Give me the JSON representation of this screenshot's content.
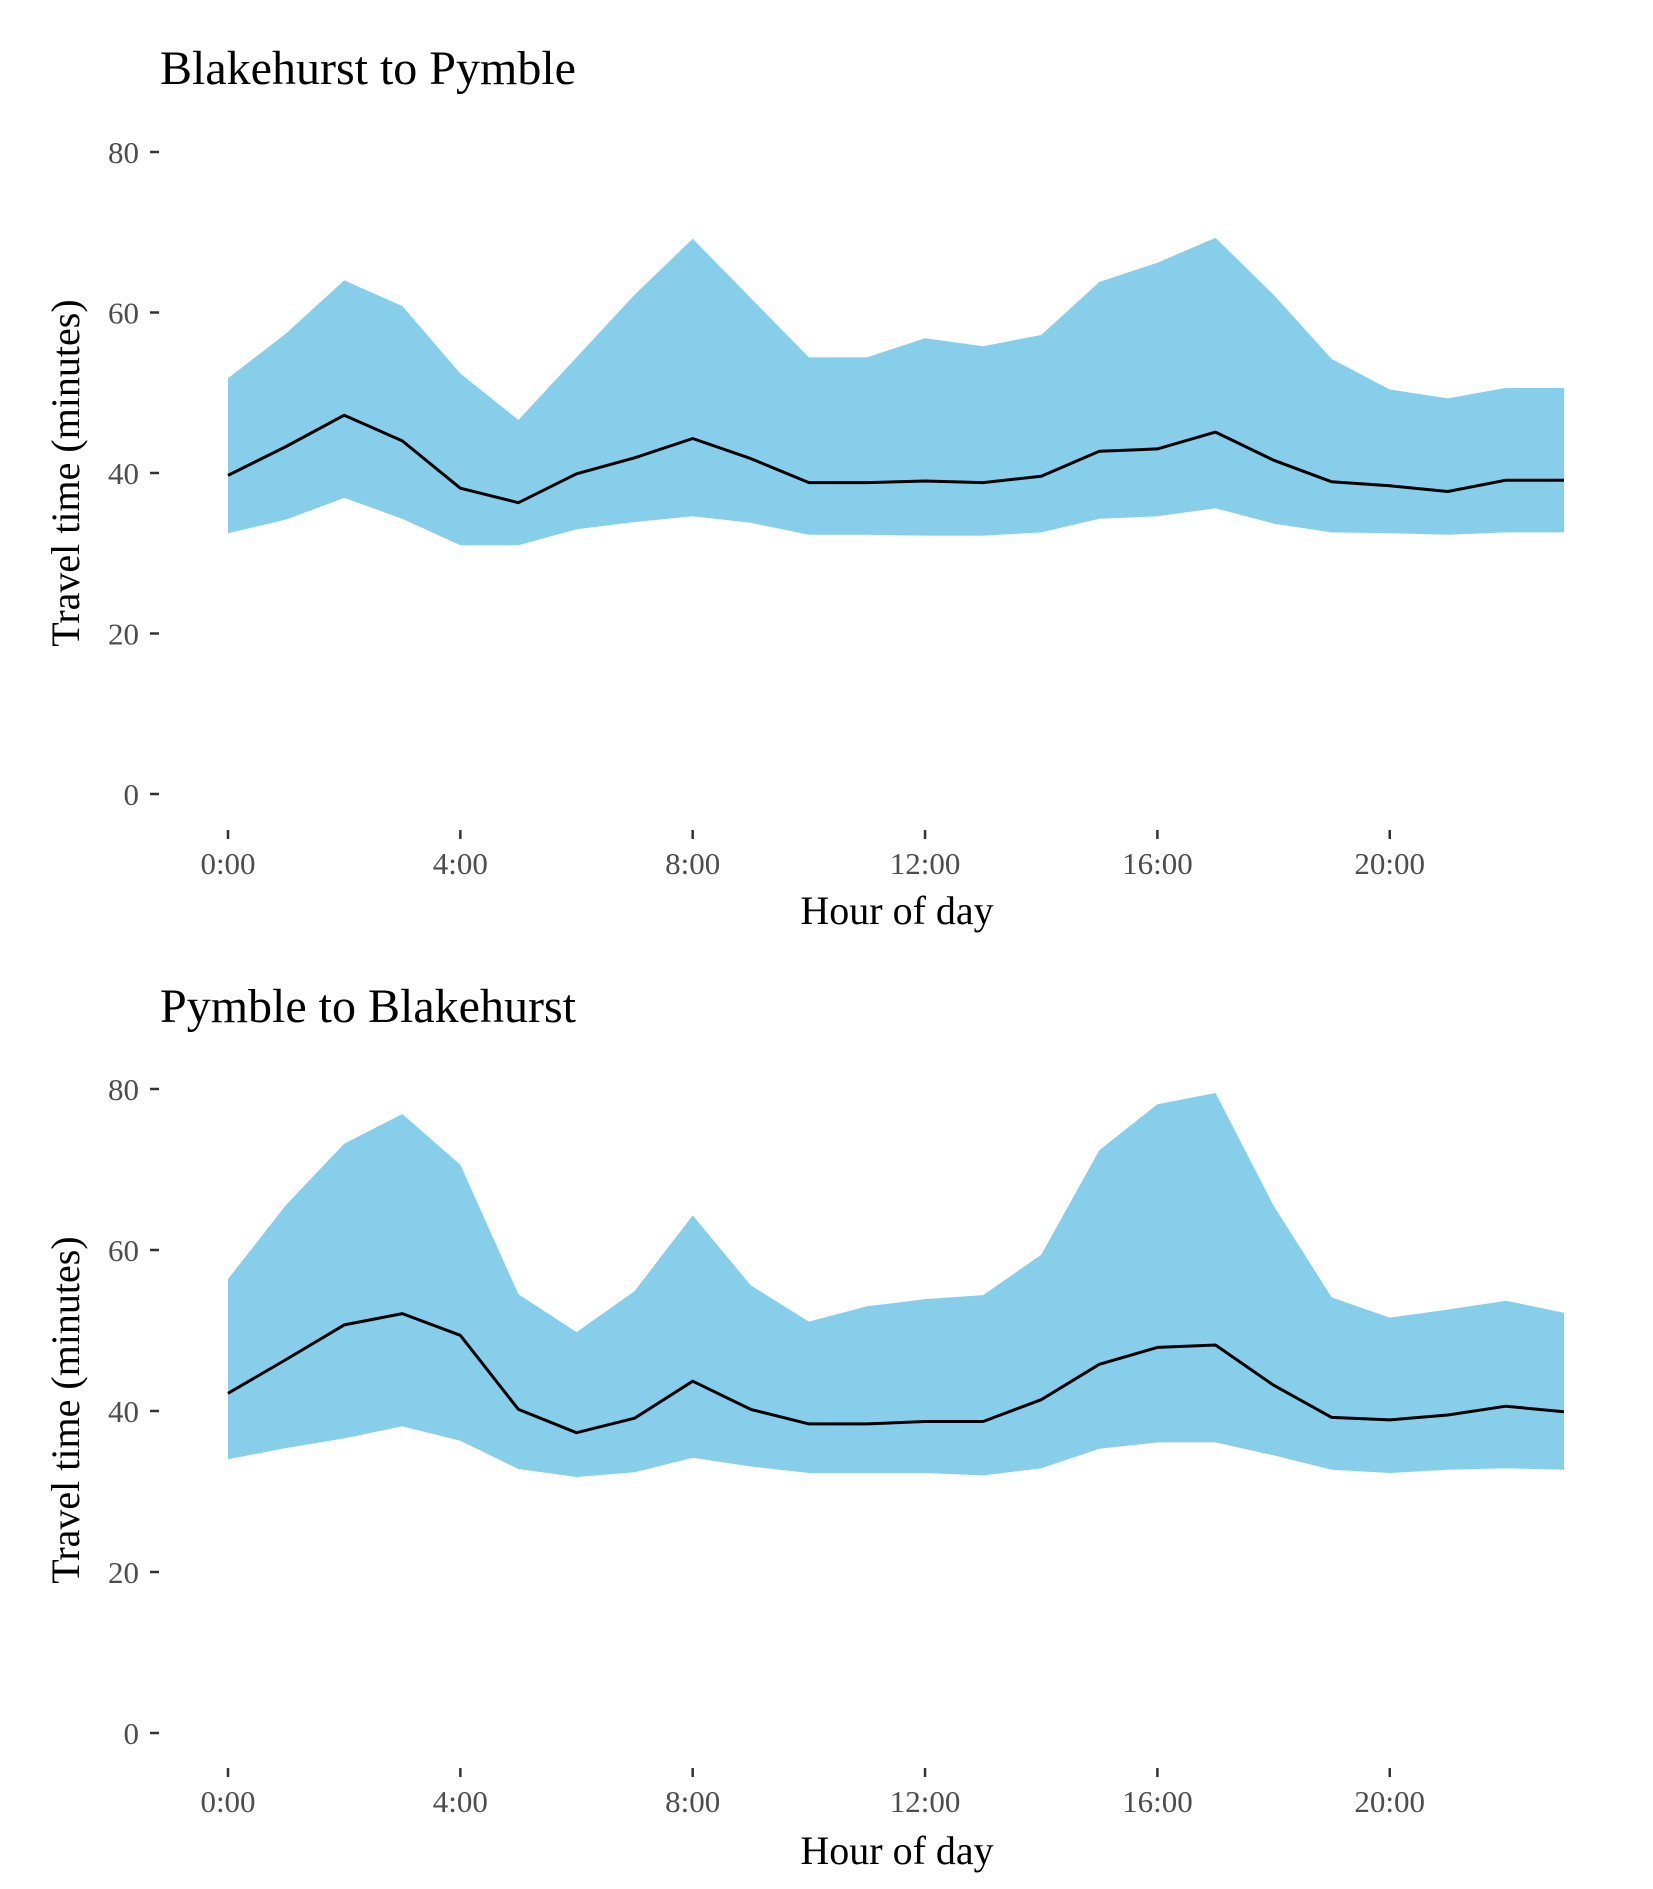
{
  "chart_data": [
    {
      "type": "area",
      "title": "Blakehurst to Pymble",
      "xlabel": "Hour of day",
      "ylabel": "Travel time (minutes)",
      "xlim": [
        0,
        23
      ],
      "ylim": [
        0,
        80
      ],
      "x_ticks": [
        0,
        4,
        8,
        12,
        16,
        20
      ],
      "x_tick_labels": [
        "0:00",
        "4:00",
        "8:00",
        "12:00",
        "16:00",
        "20:00"
      ],
      "y_ticks": [
        0,
        20,
        40,
        60,
        80
      ],
      "y_tick_labels": [
        "0",
        "20",
        "40",
        "60",
        "80"
      ],
      "grid": false,
      "band_color": "#87CEEB",
      "line_color": "#000000",
      "x": [
        0,
        1,
        2,
        3,
        4,
        5,
        6,
        7,
        8,
        9,
        10,
        11,
        12,
        13,
        14,
        15,
        16,
        17,
        18,
        19,
        20,
        21,
        22,
        23
      ],
      "band_upper": [
        51.8,
        57.4,
        64.0,
        60.8,
        52.4,
        46.6,
        54.4,
        62.2,
        69.2,
        61.8,
        54.4,
        54.4,
        56.8,
        55.8,
        57.2,
        63.8,
        66.2,
        69.3,
        62.2,
        54.2,
        50.4,
        49.3,
        50.6,
        50.6
      ],
      "band_lower": [
        32.5,
        34.2,
        36.9,
        34.3,
        31.0,
        31.0,
        33.0,
        33.9,
        34.6,
        33.8,
        32.3,
        32.3,
        32.2,
        32.2,
        32.6,
        34.3,
        34.6,
        35.6,
        33.7,
        32.6,
        32.5,
        32.3,
        32.6,
        32.6
      ],
      "series": [
        {
          "values": [
            39.7,
            43.3,
            47.2,
            44.0,
            38.1,
            36.3,
            39.9,
            41.9,
            44.3,
            41.8,
            38.8,
            38.8,
            39.0,
            38.8,
            39.6,
            42.7,
            43.0,
            45.1,
            41.6,
            38.9,
            38.4,
            37.7,
            39.1,
            39.1
          ]
        }
      ]
    },
    {
      "type": "area",
      "title": "Pymble to Blakehurst",
      "xlabel": "Hour of day",
      "ylabel": "Travel time (minutes)",
      "xlim": [
        0,
        23
      ],
      "ylim": [
        0,
        80
      ],
      "x_ticks": [
        0,
        4,
        8,
        12,
        16,
        20
      ],
      "x_tick_labels": [
        "0:00",
        "4:00",
        "8:00",
        "12:00",
        "16:00",
        "20:00"
      ],
      "y_ticks": [
        0,
        20,
        40,
        60,
        80
      ],
      "y_tick_labels": [
        "0",
        "20",
        "40",
        "60",
        "80"
      ],
      "grid": false,
      "band_color": "#87CEEB",
      "line_color": "#000000",
      "x": [
        0,
        1,
        2,
        3,
        4,
        5,
        6,
        7,
        8,
        9,
        10,
        11,
        12,
        13,
        14,
        15,
        16,
        17,
        18,
        19,
        20,
        21,
        22,
        23
      ],
      "band_upper": [
        56.4,
        65.6,
        73.2,
        76.9,
        70.6,
        54.5,
        49.8,
        54.9,
        64.3,
        55.6,
        51.1,
        53.0,
        53.9,
        54.4,
        59.4,
        72.4,
        78.1,
        79.5,
        65.5,
        54.1,
        51.6,
        52.6,
        53.7,
        52.2
      ],
      "band_lower": [
        34.0,
        35.4,
        36.6,
        38.1,
        36.3,
        32.8,
        31.8,
        32.4,
        34.2,
        33.1,
        32.3,
        32.3,
        32.3,
        32.0,
        32.9,
        35.3,
        36.1,
        36.1,
        34.5,
        32.7,
        32.3,
        32.7,
        32.9,
        32.7
      ],
      "series": [
        {
          "values": [
            42.2,
            46.4,
            50.7,
            52.1,
            49.4,
            40.2,
            37.3,
            39.1,
            43.7,
            40.2,
            38.4,
            38.4,
            38.7,
            38.7,
            41.4,
            45.8,
            47.9,
            48.2,
            43.2,
            39.2,
            38.9,
            39.5,
            40.6,
            39.9
          ]
        }
      ]
    }
  ]
}
